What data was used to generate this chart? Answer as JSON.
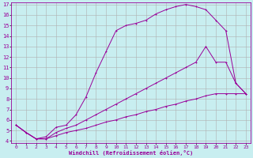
{
  "xlabel": "Windchill (Refroidissement éolien,°C)",
  "bg_color": "#c8eef0",
  "grid_color": "#b0b0b0",
  "line_color": "#990099",
  "xlim": [
    -0.5,
    23.5
  ],
  "ylim": [
    3.8,
    17.2
  ],
  "xticks": [
    0,
    1,
    2,
    3,
    4,
    5,
    6,
    7,
    8,
    9,
    10,
    11,
    12,
    13,
    14,
    15,
    16,
    17,
    18,
    19,
    20,
    21,
    22,
    23
  ],
  "yticks": [
    4,
    5,
    6,
    7,
    8,
    9,
    10,
    11,
    12,
    13,
    14,
    15,
    16,
    17
  ],
  "line1_x": [
    0,
    1,
    2,
    3,
    4,
    5,
    6,
    7,
    8,
    9,
    10,
    11,
    12,
    13,
    14,
    15,
    16,
    17,
    18,
    19,
    20,
    21,
    22,
    23
  ],
  "line1_y": [
    5.5,
    4.8,
    4.2,
    4.4,
    5.3,
    5.5,
    6.5,
    8.2,
    10.5,
    12.5,
    14.5,
    15.0,
    15.2,
    15.5,
    16.1,
    16.5,
    16.8,
    17.0,
    16.8,
    16.5,
    15.5,
    14.5,
    9.5,
    8.5
  ],
  "line2_x": [
    0,
    1,
    2,
    3,
    4,
    5,
    6,
    7,
    8,
    9,
    10,
    11,
    12,
    13,
    14,
    15,
    16,
    17,
    18,
    19,
    20,
    21,
    22,
    23
  ],
  "line2_y": [
    5.5,
    4.8,
    4.2,
    4.2,
    4.8,
    5.2,
    5.5,
    6.0,
    6.5,
    7.0,
    7.5,
    8.0,
    8.5,
    9.0,
    9.5,
    10.0,
    10.5,
    11.0,
    11.5,
    13.0,
    11.5,
    11.5,
    9.5,
    8.5
  ],
  "line3_x": [
    0,
    1,
    2,
    3,
    4,
    5,
    6,
    7,
    8,
    9,
    10,
    11,
    12,
    13,
    14,
    15,
    16,
    17,
    18,
    19,
    20,
    21,
    22,
    23
  ],
  "line3_y": [
    5.5,
    4.8,
    4.2,
    4.2,
    4.5,
    4.8,
    5.0,
    5.2,
    5.5,
    5.8,
    6.0,
    6.3,
    6.5,
    6.8,
    7.0,
    7.3,
    7.5,
    7.8,
    8.0,
    8.3,
    8.5,
    8.5,
    8.5,
    8.5
  ]
}
